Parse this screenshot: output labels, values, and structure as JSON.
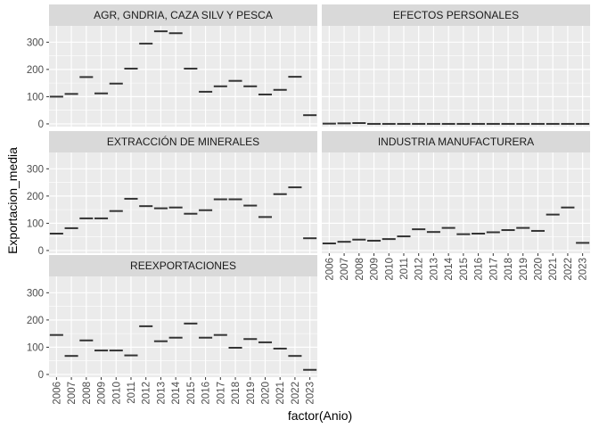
{
  "chart_data": {
    "type": "bar",
    "xlabel": "factor(Anio)",
    "ylabel": "Exportacion_media",
    "ylim": [
      -10,
      360
    ],
    "y_ticks": [
      0,
      100,
      200,
      300
    ],
    "categories": [
      "2006",
      "2007",
      "2008",
      "2009",
      "2010",
      "2011",
      "2012",
      "2013",
      "2014",
      "2015",
      "2016",
      "2017",
      "2018",
      "2019",
      "2020",
      "2021",
      "2022",
      "2023"
    ],
    "facets": [
      {
        "name": "AGR, GNDRIA, CAZA SILV Y PESCA",
        "values": [
          100,
          110,
          172,
          112,
          148,
          203,
          295,
          340,
          333,
          203,
          118,
          138,
          158,
          138,
          108,
          125,
          173,
          32
        ]
      },
      {
        "name": "EFECTOS PERSONALES",
        "values": [
          1,
          2,
          3,
          0,
          0,
          0,
          0,
          0,
          0,
          0,
          0,
          0,
          0,
          0,
          0,
          0,
          0,
          0
        ]
      },
      {
        "name": "EXTRACCIÓN  DE MINERALES",
        "values": [
          62,
          82,
          118,
          118,
          145,
          190,
          163,
          155,
          158,
          135,
          148,
          188,
          188,
          165,
          123,
          207,
          232,
          45
        ]
      },
      {
        "name": "INDUSTRIA MANUFACTURERA",
        "values": [
          26,
          32,
          40,
          36,
          42,
          52,
          78,
          68,
          83,
          60,
          62,
          67,
          75,
          83,
          72,
          132,
          158,
          28
        ]
      },
      {
        "name": "REEXPORTACIONES",
        "values": [
          145,
          68,
          125,
          88,
          88,
          70,
          177,
          122,
          135,
          187,
          135,
          145,
          98,
          130,
          118,
          95,
          68,
          17
        ]
      }
    ],
    "legend": "none",
    "grid": true,
    "colors": {
      "panel_background": "#EBEBEB",
      "strip_background": "#D9D9D9",
      "gridline": "#FFFFFF",
      "mark": "#333333"
    }
  }
}
